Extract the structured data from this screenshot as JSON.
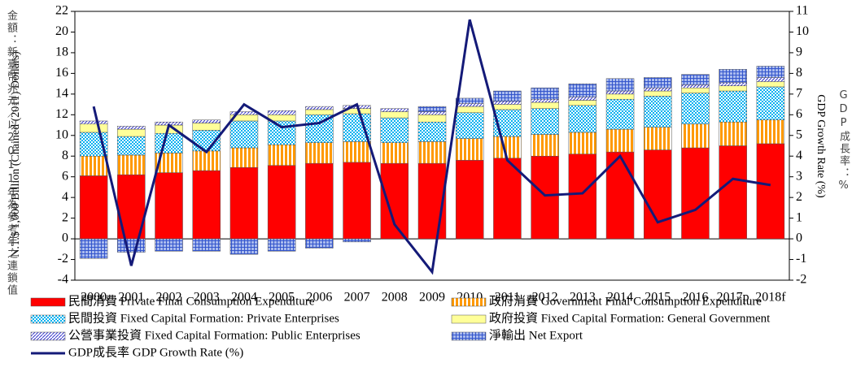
{
  "chart_data": {
    "type": "bar",
    "y_label": "N.T.$ 1,000 Billion (Chained (2011) Dollars)",
    "y_label_zh": "金額：新臺幣兆元／以2011年為參考年之連鎖值",
    "y2_label": "GDP Growth Rate (%)",
    "y2_label_zh": "GDP成長率：%",
    "categories": [
      "2000",
      "2001",
      "2002",
      "2003",
      "2004",
      "2005",
      "2006",
      "2007",
      "2008",
      "2009",
      "2010",
      "2011",
      "2012",
      "2013",
      "2014",
      "2015",
      "2016",
      "2017p",
      "2018f"
    ],
    "series": [
      {
        "name": "民間消費 Private Final Consumption Expenditure",
        "color": "#ff0000",
        "pattern": "solid",
        "values": [
          6.1,
          6.2,
          6.4,
          6.6,
          6.9,
          7.1,
          7.3,
          7.4,
          7.3,
          7.3,
          7.6,
          7.8,
          8.0,
          8.2,
          8.4,
          8.6,
          8.8,
          9.0,
          9.2
        ]
      },
      {
        "name": "政府消費 Government Final Consumption Expenditure",
        "color": "#ff9900",
        "pattern": "vertical",
        "values": [
          1.9,
          1.9,
          1.9,
          1.9,
          1.9,
          2.0,
          2.0,
          2.0,
          2.0,
          2.1,
          2.1,
          2.1,
          2.1,
          2.1,
          2.2,
          2.2,
          2.3,
          2.3,
          2.3
        ]
      },
      {
        "name": "民間投資 Fixed Capital Formation: Private Enterprises",
        "color": "#00b0f0",
        "pattern": "checker",
        "values": [
          2.3,
          1.8,
          1.9,
          2.0,
          2.6,
          2.3,
          2.7,
          2.7,
          2.4,
          1.9,
          2.5,
          2.6,
          2.5,
          2.6,
          2.9,
          3.0,
          3.0,
          3.0,
          3.2
        ]
      },
      {
        "name": "政府投資 Fixed Capital Formation: General Government",
        "color": "#ffff99",
        "pattern": "solid",
        "values": [
          0.8,
          0.7,
          0.8,
          0.7,
          0.6,
          0.6,
          0.5,
          0.5,
          0.6,
          0.7,
          0.6,
          0.5,
          0.6,
          0.5,
          0.5,
          0.5,
          0.5,
          0.5,
          0.5
        ]
      },
      {
        "name": "公營事業投資 Fixed Capital Formation: Public Enterprises",
        "color": "#3333cc",
        "pattern": "diagonal",
        "values": [
          0.3,
          0.3,
          0.3,
          0.3,
          0.3,
          0.4,
          0.3,
          0.3,
          0.3,
          0.3,
          0.3,
          0.3,
          0.3,
          0.3,
          0.3,
          0.3,
          0.3,
          0.3,
          0.4
        ]
      },
      {
        "name": "淨輸出 Net Export",
        "color": "#3355cc",
        "pattern": "grid",
        "values": [
          -1.9,
          -1.3,
          -1.2,
          -1.2,
          -1.5,
          -1.2,
          -0.9,
          -0.3,
          0,
          0.5,
          0.5,
          1.0,
          1.1,
          1.3,
          1.2,
          1.0,
          1.0,
          1.3,
          1.1
        ]
      },
      {
        "name": "GDP成長率 GDP Growth Rate (%)",
        "color": "#141a78",
        "type": "line",
        "axis": "y2",
        "values": [
          6.4,
          -1.3,
          5.5,
          4.2,
          6.5,
          5.4,
          5.6,
          6.5,
          0.7,
          -1.6,
          10.6,
          3.8,
          2.1,
          2.2,
          4.0,
          0.8,
          1.4,
          2.9,
          2.6
        ]
      }
    ],
    "stacked": true,
    "ylim": [
      -4,
      22
    ],
    "yticks": [
      -4,
      -2,
      0,
      2,
      4,
      6,
      8,
      10,
      12,
      14,
      16,
      18,
      20,
      22
    ],
    "y2lim": [
      -2,
      11
    ],
    "y2ticks": [
      -2,
      -1,
      0,
      1,
      2,
      3,
      4,
      5,
      6,
      7,
      8,
      9,
      10,
      11
    ]
  }
}
